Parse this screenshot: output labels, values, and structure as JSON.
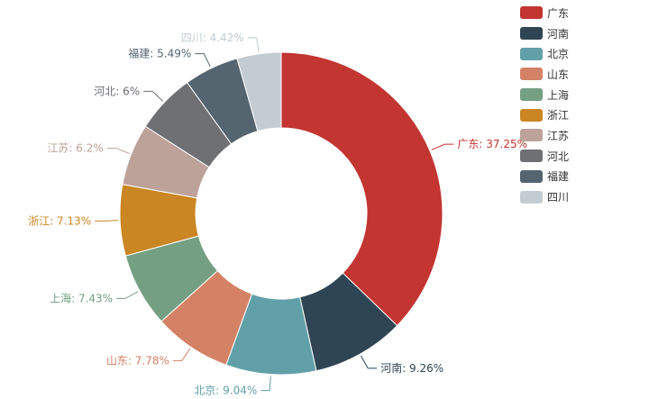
{
  "chart_data": {
    "type": "pie",
    "donut": true,
    "legend_position": "top-right",
    "categories": [
      "广东",
      "河南",
      "北京",
      "山东",
      "上海",
      "浙江",
      "江苏",
      "河北",
      "福建",
      "四川"
    ],
    "values": [
      37.25,
      9.26,
      9.04,
      7.78,
      7.43,
      7.13,
      6.2,
      6,
      5.49,
      4.42
    ],
    "labels": [
      "广东: 37.25%",
      "河南: 9.26%",
      "北京: 9.04%",
      "山东: 7.78%",
      "上海: 7.43%",
      "浙江: 7.13%",
      "江苏: 6.2%",
      "河北: 6%",
      "福建: 5.49%",
      "四川: 4.42%"
    ],
    "colors": [
      "#c23531",
      "#2f4554",
      "#61a0a8",
      "#d48265",
      "#749f83",
      "#ca8622",
      "#bda29a",
      "#6e7074",
      "#546570",
      "#c4ccd3"
    ]
  }
}
